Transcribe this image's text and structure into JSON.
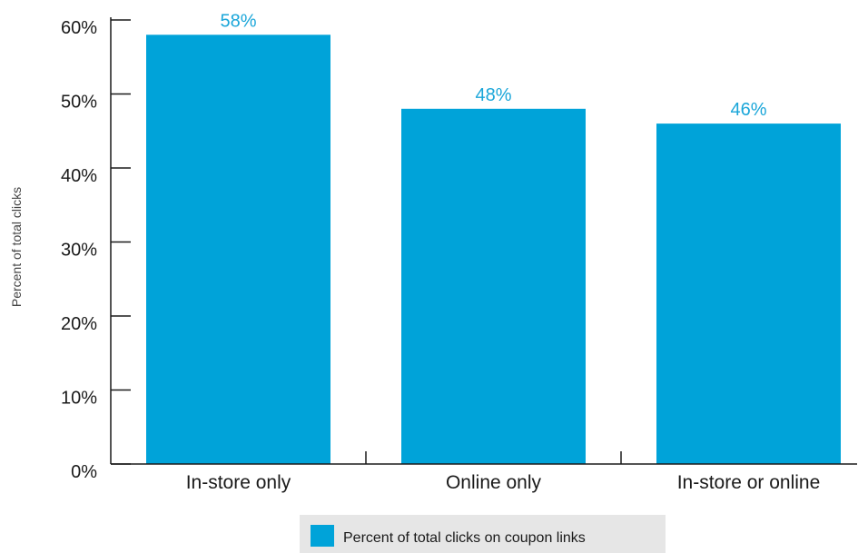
{
  "chart_data": {
    "type": "bar",
    "categories": [
      "In-store only",
      "Online only",
      "In-store or online"
    ],
    "series": [
      {
        "name": "Percent of total clicks on coupon links",
        "values": [
          58,
          48,
          46
        ]
      }
    ],
    "data_labels": [
      "58%",
      "48%",
      "46%"
    ],
    "title": "",
    "xlabel": "",
    "ylabel": "Percent of total clicks",
    "ylim": [
      0,
      60
    ],
    "yticks": [
      "0%",
      "10%",
      "20%",
      "30%",
      "40%",
      "50%",
      "60%"
    ],
    "legend_position": "bottom-center",
    "grid": false,
    "colors": {
      "bar": "#00a3d9",
      "data_label": "#1aa6d9",
      "axis": "#1a1a1a",
      "legend_background": "#e6e6e6"
    }
  }
}
